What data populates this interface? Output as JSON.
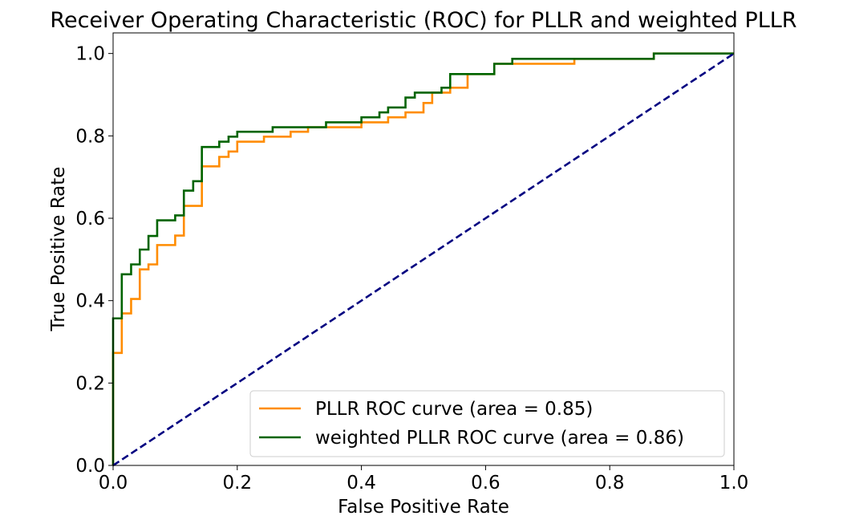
{
  "chart_data": {
    "type": "line",
    "title": "Receiver Operating Characteristic (ROC) for PLLR and weighted PLLR",
    "xlabel": "False Positive Rate",
    "ylabel": "True Positive Rate",
    "xlim": [
      0.0,
      1.0
    ],
    "ylim": [
      0.0,
      1.05
    ],
    "xticks": [
      "0.0",
      "0.2",
      "0.4",
      "0.6",
      "0.8",
      "1.0"
    ],
    "yticks": [
      "0.0",
      "0.2",
      "0.4",
      "0.6",
      "0.8",
      "1.0"
    ],
    "grid": false,
    "legend_position": "lower-right",
    "series": [
      {
        "name": "PLLR ROC curve (area = 0.85)",
        "color": "#ff8c00",
        "style": "solid-step",
        "x": [
          0.0,
          0.0,
          0.014,
          0.014,
          0.029,
          0.029,
          0.043,
          0.043,
          0.057,
          0.057,
          0.071,
          0.071,
          0.1,
          0.1,
          0.114,
          0.114,
          0.143,
          0.143,
          0.171,
          0.171,
          0.186,
          0.186,
          0.2,
          0.2,
          0.243,
          0.243,
          0.286,
          0.286,
          0.314,
          0.314,
          0.4,
          0.4,
          0.443,
          0.443,
          0.471,
          0.471,
          0.5,
          0.5,
          0.514,
          0.514,
          0.543,
          0.543,
          0.571,
          0.571,
          0.614,
          0.614,
          0.643,
          0.643,
          0.743,
          0.743,
          0.871,
          0.871,
          1.0
        ],
        "y": [
          0.0,
          0.273,
          0.273,
          0.369,
          0.369,
          0.404,
          0.404,
          0.476,
          0.476,
          0.488,
          0.488,
          0.535,
          0.535,
          0.558,
          0.558,
          0.63,
          0.63,
          0.726,
          0.726,
          0.749,
          0.749,
          0.762,
          0.762,
          0.786,
          0.786,
          0.798,
          0.798,
          0.81,
          0.81,
          0.821,
          0.821,
          0.833,
          0.833,
          0.845,
          0.845,
          0.857,
          0.857,
          0.88,
          0.88,
          0.905,
          0.905,
          0.917,
          0.917,
          0.95,
          0.95,
          0.975,
          0.975,
          0.975,
          0.975,
          0.987,
          0.987,
          1.0,
          1.0
        ]
      },
      {
        "name": "weighted PLLR ROC curve (area = 0.86)",
        "color": "#006400",
        "style": "solid-step",
        "x": [
          0.0,
          0.0,
          0.014,
          0.014,
          0.029,
          0.029,
          0.043,
          0.043,
          0.057,
          0.057,
          0.071,
          0.071,
          0.1,
          0.1,
          0.114,
          0.114,
          0.129,
          0.129,
          0.143,
          0.143,
          0.171,
          0.171,
          0.186,
          0.186,
          0.2,
          0.2,
          0.257,
          0.257,
          0.343,
          0.343,
          0.4,
          0.4,
          0.429,
          0.429,
          0.443,
          0.443,
          0.471,
          0.471,
          0.486,
          0.486,
          0.529,
          0.529,
          0.543,
          0.543,
          0.614,
          0.614,
          0.643,
          0.643,
          0.871,
          0.871,
          1.0
        ],
        "y": [
          0.0,
          0.357,
          0.357,
          0.464,
          0.464,
          0.488,
          0.488,
          0.524,
          0.524,
          0.557,
          0.557,
          0.595,
          0.595,
          0.607,
          0.607,
          0.667,
          0.667,
          0.69,
          0.69,
          0.773,
          0.773,
          0.786,
          0.786,
          0.798,
          0.798,
          0.81,
          0.81,
          0.821,
          0.821,
          0.833,
          0.833,
          0.845,
          0.845,
          0.857,
          0.857,
          0.869,
          0.869,
          0.893,
          0.893,
          0.905,
          0.905,
          0.917,
          0.917,
          0.95,
          0.95,
          0.975,
          0.975,
          0.987,
          0.987,
          1.0,
          1.0
        ]
      },
      {
        "name": "",
        "color": "#000080",
        "style": "dashed",
        "x": [
          0.0,
          1.0
        ],
        "y": [
          0.0,
          1.0
        ]
      }
    ]
  }
}
